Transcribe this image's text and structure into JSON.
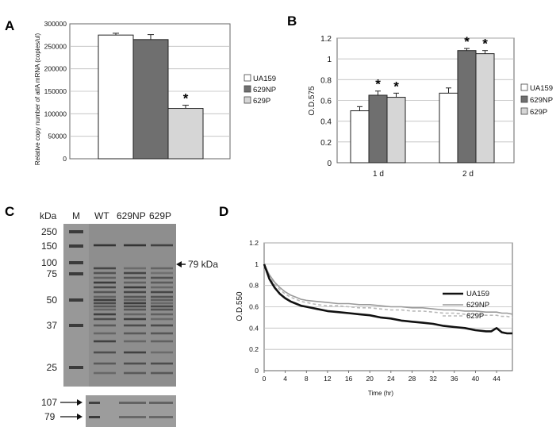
{
  "panels": {
    "a": "A",
    "b": "B",
    "c": "C",
    "d": "D"
  },
  "chart_data": [
    {
      "id": "A",
      "type": "bar",
      "title": "",
      "ylabel": "Relative copy number of atlA mRNA (copies/ul)",
      "xlabel": "",
      "ylim": [
        0,
        300000
      ],
      "yticks": [
        "0",
        "50000",
        "100000",
        "150000",
        "200000",
        "250000",
        "300000"
      ],
      "ytick_values": [
        0,
        50000,
        100000,
        150000,
        200000,
        250000,
        300000
      ],
      "series": [
        {
          "name": "UA159",
          "value": 275000,
          "error": 4000,
          "star": false,
          "color": "#ffffff"
        },
        {
          "name": "629NP",
          "value": 265000,
          "error": 11000,
          "star": false,
          "color": "#6f6f6f"
        },
        {
          "name": "629P",
          "value": 112000,
          "error": 7000,
          "star": true,
          "color": "#d6d6d6"
        }
      ],
      "legend": [
        "UA159",
        "629NP",
        "629P"
      ],
      "star_label": "*"
    },
    {
      "id": "B",
      "type": "bar",
      "ylabel": "O.D.575",
      "xlabel": "",
      "ylim": [
        0,
        1.2
      ],
      "yticks": [
        "0",
        "0.2",
        "0.4",
        "0.6",
        "0.8",
        "1",
        "1.2"
      ],
      "ytick_values": [
        0,
        0.2,
        0.4,
        0.6,
        0.8,
        1.0,
        1.2
      ],
      "categories": [
        "1 d",
        "2 d"
      ],
      "series": [
        {
          "name": "UA159",
          "values": [
            0.5,
            0.67
          ],
          "errors": [
            0.04,
            0.05
          ],
          "stars": [
            false,
            false
          ],
          "color": "#ffffff"
        },
        {
          "name": "629NP",
          "values": [
            0.65,
            1.08
          ],
          "errors": [
            0.04,
            0.02
          ],
          "stars": [
            true,
            true
          ],
          "color": "#6f6f6f"
        },
        {
          "name": "629P",
          "values": [
            0.63,
            1.05
          ],
          "errors": [
            0.04,
            0.03
          ],
          "stars": [
            true,
            true
          ],
          "color": "#d6d6d6"
        }
      ],
      "legend": [
        "UA159",
        "629NP",
        "629P"
      ],
      "star_label": "*"
    },
    {
      "id": "D",
      "type": "line",
      "ylabel": "O.D.550",
      "xlabel": "Time (hr)",
      "xlim": [
        0,
        47
      ],
      "ylim": [
        0,
        1.2
      ],
      "xticks": [
        "0",
        "4",
        "8",
        "12",
        "16",
        "20",
        "24",
        "28",
        "32",
        "36",
        "40",
        "44"
      ],
      "xtick_values": [
        0,
        4,
        8,
        12,
        16,
        20,
        24,
        28,
        32,
        36,
        40,
        44
      ],
      "yticks": [
        "0",
        "0.2",
        "0.4",
        "0.6",
        "0.8",
        "1",
        "1.2"
      ],
      "ytick_values": [
        0,
        0.2,
        0.4,
        0.6,
        0.8,
        1.0,
        1.2
      ],
      "x": [
        0,
        1,
        2,
        3,
        4,
        5,
        6,
        7,
        8,
        10,
        12,
        14,
        16,
        18,
        20,
        22,
        24,
        26,
        28,
        30,
        32,
        34,
        36,
        38,
        40,
        42,
        43,
        44,
        45,
        46,
        47
      ],
      "series": [
        {
          "name": "UA159",
          "style": "solid-thick",
          "color": "#111111",
          "values": [
            1.0,
            0.86,
            0.78,
            0.72,
            0.68,
            0.65,
            0.63,
            0.61,
            0.6,
            0.58,
            0.56,
            0.55,
            0.54,
            0.53,
            0.52,
            0.5,
            0.49,
            0.47,
            0.46,
            0.45,
            0.44,
            0.42,
            0.41,
            0.4,
            0.38,
            0.37,
            0.37,
            0.4,
            0.36,
            0.35,
            0.35
          ]
        },
        {
          "name": "629NP",
          "style": "solid",
          "color": "#9a9a9a",
          "values": [
            1.0,
            0.9,
            0.83,
            0.78,
            0.74,
            0.71,
            0.69,
            0.67,
            0.66,
            0.65,
            0.64,
            0.63,
            0.63,
            0.62,
            0.62,
            0.61,
            0.6,
            0.6,
            0.59,
            0.59,
            0.58,
            0.57,
            0.57,
            0.56,
            0.56,
            0.55,
            0.55,
            0.55,
            0.54,
            0.54,
            0.53
          ]
        },
        {
          "name": "629P",
          "style": "dashed",
          "color": "#b8b8b8",
          "values": [
            1.0,
            0.89,
            0.81,
            0.76,
            0.72,
            0.69,
            0.67,
            0.65,
            0.64,
            0.62,
            0.61,
            0.61,
            0.6,
            0.59,
            0.59,
            0.58,
            0.57,
            0.57,
            0.56,
            0.56,
            0.55,
            0.54,
            0.54,
            0.53,
            0.53,
            0.52,
            0.52,
            0.52,
            0.51,
            0.51,
            0.5
          ]
        }
      ],
      "legend": [
        "UA159",
        "629NP",
        "629P"
      ]
    }
  ],
  "gel": {
    "unit_label": "kDa",
    "lanes": [
      "M",
      "WT",
      "629NP",
      "629P"
    ],
    "markers": [
      "250",
      "150",
      "100",
      "75",
      "50",
      "37",
      "25"
    ],
    "marker_values": [
      250,
      150,
      100,
      75,
      50,
      37,
      25
    ],
    "annotation": "79 kDa",
    "inset_markers": [
      "107",
      "79"
    ]
  },
  "colors": {
    "bar_border": "#222222",
    "grid": "#bdbdbd",
    "gel_bg": "#8e8e8e",
    "gel_band": "#2a2a2a"
  }
}
